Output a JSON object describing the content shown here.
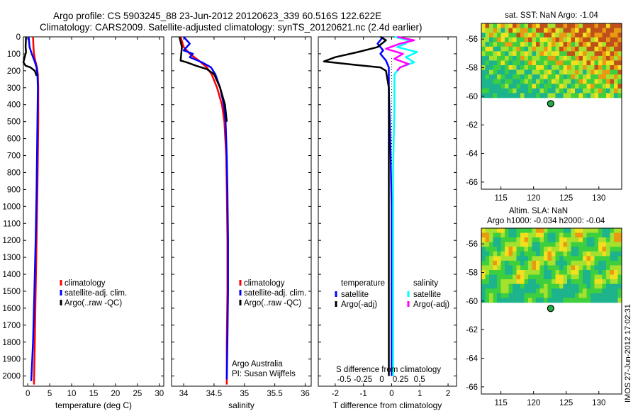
{
  "colors": {
    "red": "#ff0000",
    "blue": "#0000ff",
    "black": "#000000",
    "cyan": "#00ffff",
    "magenta": "#ff00ff"
  },
  "header": {
    "title_line1": "Argo profile: CS 5903245_88 23-Jun-2012 20120623_339 60.516S 122.622E",
    "title_line2": "Climatology: CARS2009. Satellite-adjusted climatology: synTS_20120621.nc (2.4d earlier)"
  },
  "side_label": "IMOS 27-Jun-2012 17:02:31",
  "chart_data": [
    {
      "type": "line",
      "name": "temperature",
      "xlabel": "temperature (deg C)",
      "ylabel": "",
      "xlim": [
        -1,
        31
      ],
      "ylim": [
        2060,
        0
      ],
      "xticks": [
        0,
        5,
        10,
        15,
        20,
        25,
        30
      ],
      "yticks": [
        0,
        100,
        200,
        300,
        400,
        500,
        600,
        700,
        800,
        900,
        1000,
        1100,
        1200,
        1300,
        1400,
        1500,
        1600,
        1700,
        1800,
        1900,
        2000
      ],
      "legend": [
        "climatology",
        "satellite-adj. clim.",
        "Argo(..raw -QC)"
      ],
      "series": [
        {
          "name": "climatology",
          "color": "red",
          "points": [
            [
              1.2,
              0
            ],
            [
              1.3,
              60
            ],
            [
              1.4,
              100
            ],
            [
              1.7,
              140
            ],
            [
              2.1,
              180
            ],
            [
              2.3,
              220
            ],
            [
              2.4,
              300
            ],
            [
              2.4,
              500
            ],
            [
              2.3,
              700
            ],
            [
              2.2,
              900
            ],
            [
              2.0,
              1200
            ],
            [
              1.8,
              1500
            ],
            [
              1.6,
              1800
            ],
            [
              1.4,
              2050
            ]
          ]
        },
        {
          "name": "satellite-adj. clim.",
          "color": "blue",
          "points": [
            [
              0.2,
              0
            ],
            [
              0.4,
              60
            ],
            [
              0.9,
              100
            ],
            [
              1.5,
              140
            ],
            [
              2.0,
              180
            ],
            [
              2.2,
              220
            ],
            [
              2.3,
              300
            ],
            [
              2.2,
              500
            ],
            [
              2.1,
              700
            ],
            [
              2.0,
              900
            ],
            [
              1.8,
              1200
            ],
            [
              1.5,
              1500
            ],
            [
              1.2,
              1800
            ],
            [
              0.8,
              2030
            ]
          ]
        },
        {
          "name": "Argo(..raw -QC)",
          "color": "black",
          "points": [
            [
              -0.4,
              0
            ],
            [
              -0.5,
              60
            ],
            [
              -0.4,
              90
            ],
            [
              -0.8,
              130
            ],
            [
              -1.0,
              150
            ],
            [
              -0.5,
              170
            ],
            [
              0.6,
              180
            ],
            [
              1.6,
              200
            ],
            [
              2.0,
              230
            ]
          ]
        }
      ]
    },
    {
      "type": "line",
      "name": "salinity",
      "xlabel": "salinity",
      "ylabel": "",
      "xlim": [
        33.8,
        36.1
      ],
      "ylim": [
        2060,
        0
      ],
      "xticks": [
        34,
        34.5,
        35,
        35.5,
        36
      ],
      "xticklabels": [
        "34",
        "34.5",
        "35",
        "35.5",
        "36"
      ],
      "legend": [
        "climatology",
        "satellite-adj. clim.",
        "Argo(..raw -QC)"
      ],
      "annotations": [
        "Argo Australia",
        "PI: Susan Wijffels"
      ],
      "series": [
        {
          "name": "climatology",
          "color": "red",
          "points": [
            [
              33.95,
              0
            ],
            [
              34.0,
              60
            ],
            [
              34.1,
              100
            ],
            [
              34.25,
              140
            ],
            [
              34.38,
              180
            ],
            [
              34.46,
              220
            ],
            [
              34.55,
              300
            ],
            [
              34.63,
              400
            ],
            [
              34.67,
              500
            ],
            [
              34.7,
              700
            ],
            [
              34.71,
              900
            ],
            [
              34.72,
              1200
            ],
            [
              34.72,
              1500
            ],
            [
              34.71,
              1800
            ],
            [
              34.71,
              2050
            ]
          ]
        },
        {
          "name": "satellite-adj. clim.",
          "color": "blue",
          "points": [
            [
              34.0,
              0
            ],
            [
              34.1,
              40
            ],
            [
              34.0,
              80
            ],
            [
              34.15,
              100
            ],
            [
              34.1,
              120
            ],
            [
              34.3,
              150
            ],
            [
              34.45,
              180
            ],
            [
              34.52,
              220
            ],
            [
              34.6,
              300
            ],
            [
              34.66,
              400
            ],
            [
              34.69,
              500
            ],
            [
              34.71,
              700
            ],
            [
              34.72,
              900
            ],
            [
              34.73,
              1200
            ],
            [
              34.73,
              1500
            ],
            [
              34.72,
              1800
            ],
            [
              34.71,
              2020
            ]
          ]
        },
        {
          "name": "Argo(..raw -QC)",
          "color": "black",
          "points": [
            [
              33.93,
              0
            ],
            [
              33.97,
              60
            ],
            [
              33.96,
              100
            ],
            [
              33.95,
              140
            ],
            [
              34.05,
              150
            ],
            [
              34.2,
              170
            ],
            [
              34.38,
              190
            ],
            [
              34.5,
              220
            ],
            [
              34.6,
              300
            ],
            [
              34.68,
              400
            ],
            [
              34.71,
              500
            ]
          ]
        }
      ]
    },
    {
      "type": "line",
      "name": "difference",
      "xlabel": "T difference from climatology",
      "top_xlabel": "S difference from climatology",
      "xlim": [
        -2.6,
        2.3
      ],
      "ylim": [
        2060,
        0
      ],
      "xticks": [
        -2,
        -1,
        0,
        1,
        2
      ],
      "top_xticks": [
        -0.5,
        -0.25,
        0,
        0.25,
        0.5
      ],
      "top_xticklabels": [
        "-0.5",
        "-0.25",
        "0",
        "0.25",
        "0.5"
      ],
      "legend_titles": [
        "temperature",
        "salinity"
      ],
      "legend": [
        "satellite",
        "Argo(-adj)",
        "satellite",
        "Argo(-adj)"
      ],
      "series": [
        {
          "name": "T satellite",
          "color": "blue",
          "points": [
            [
              -0.3,
              0
            ],
            [
              -0.5,
              40
            ],
            [
              -0.3,
              80
            ],
            [
              -0.4,
              100
            ],
            [
              -0.2,
              140
            ],
            [
              -0.1,
              180
            ],
            [
              -0.1,
              300
            ],
            [
              -0.05,
              600
            ],
            [
              0,
              1000
            ],
            [
              0,
              1500
            ],
            [
              0,
              2000
            ]
          ]
        },
        {
          "name": "T Argo(-adj)",
          "color": "black",
          "points": [
            [
              -0.4,
              0
            ],
            [
              -0.2,
              20
            ],
            [
              -0.5,
              60
            ],
            [
              -1.2,
              90
            ],
            [
              -2.0,
              120
            ],
            [
              -2.4,
              145
            ],
            [
              -1.3,
              165
            ],
            [
              -0.4,
              180
            ],
            [
              -0.2,
              200
            ],
            [
              -0.1,
              300
            ],
            [
              -0.1,
              600
            ],
            [
              -0.1,
              1000
            ],
            [
              -0.1,
              1500
            ],
            [
              -0.1,
              2000
            ]
          ]
        },
        {
          "name": "S satellite",
          "color": "cyan",
          "points": [
            [
              0.1,
              0
            ],
            [
              0.6,
              20
            ],
            [
              0.5,
              40
            ],
            [
              0.2,
              60
            ],
            [
              0.9,
              90
            ],
            [
              0.5,
              120
            ],
            [
              0.8,
              150
            ],
            [
              0.3,
              180
            ],
            [
              0.1,
              220
            ],
            [
              0.1,
              400
            ],
            [
              0.05,
              800
            ],
            [
              0.05,
              1200
            ],
            [
              0.05,
              1600
            ],
            [
              0.05,
              2000
            ]
          ]
        },
        {
          "name": "S Argo(-adj)",
          "color": "magenta",
          "points": [
            [
              0.2,
              0
            ],
            [
              0.8,
              20
            ],
            [
              0.3,
              40
            ],
            [
              -0.2,
              70
            ],
            [
              0.4,
              100
            ],
            [
              0.1,
              130
            ],
            [
              0.6,
              160
            ],
            [
              0.3,
              180
            ],
            [
              0.2,
              200
            ]
          ]
        }
      ]
    },
    {
      "type": "heatmap",
      "name": "sst-map",
      "title": "sat. SST: NaN Argo: -1.04",
      "xlim": [
        112,
        133.5
      ],
      "ylim": [
        -66.5,
        -54.9
      ],
      "xticks": [
        115,
        120,
        125,
        130
      ],
      "yticks": [
        -56,
        -58,
        -60,
        -62,
        -64,
        -66
      ],
      "marker": [
        122.622,
        -60.516
      ],
      "data_extent_ylim": [
        -60.1,
        -54.9
      ]
    },
    {
      "type": "heatmap",
      "name": "sla-map",
      "title": "Altim. SLA: NaN",
      "subtitle": "Argo h1000: -0.034 h2000: -0.04",
      "xlim": [
        112,
        133.5
      ],
      "ylim": [
        -66.5,
        -54.9
      ],
      "xticks": [
        115,
        120,
        125,
        130
      ],
      "yticks": [
        -56,
        -58,
        -60,
        -62,
        -64,
        -66
      ],
      "marker": [
        122.622,
        -60.516
      ],
      "data_extent_ylim": [
        -60.1,
        -54.9
      ]
    }
  ]
}
